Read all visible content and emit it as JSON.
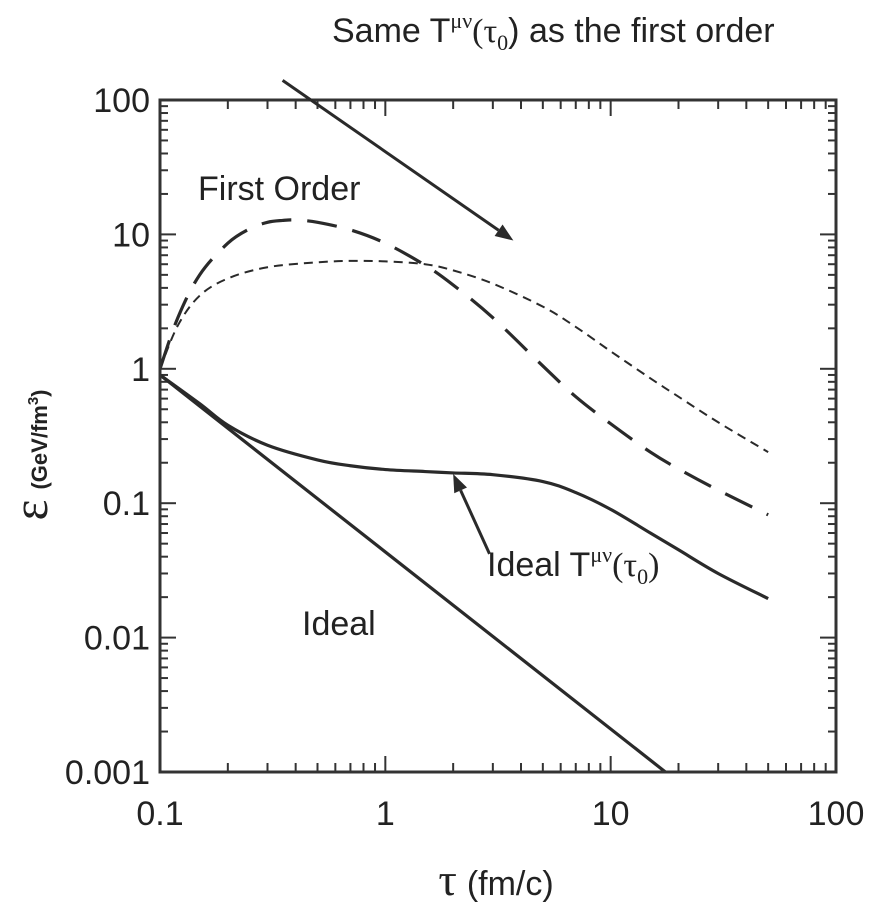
{
  "chart_data": {
    "type": "line",
    "xlabel": {
      "symbol": "τ",
      "unit": "(fm/c)"
    },
    "ylabel": {
      "symbol": "ε",
      "unit": "(GeV/fm",
      "unit_sup": "3",
      "unit_end": ")"
    },
    "x_scale": "log",
    "y_scale": "log",
    "xlim": [
      0.1,
      100
    ],
    "ylim": [
      0.001,
      100
    ],
    "x_ticks": [
      {
        "value": 0.1,
        "label": "0.1"
      },
      {
        "value": 1,
        "label": "1"
      },
      {
        "value": 10,
        "label": "10"
      },
      {
        "value": 100,
        "label": "100"
      }
    ],
    "y_ticks": [
      {
        "value": 0.001,
        "label": "0.001"
      },
      {
        "value": 0.01,
        "label": "0.01"
      },
      {
        "value": 0.1,
        "label": "0.1"
      },
      {
        "value": 1,
        "label": "1"
      },
      {
        "value": 10,
        "label": "10"
      },
      {
        "value": 100,
        "label": "100"
      }
    ],
    "grid": false,
    "series": [
      {
        "style": "long-dash",
        "points": [
          [
            0.1,
            1.0
          ],
          [
            0.12,
            2.4
          ],
          [
            0.15,
            5.0
          ],
          [
            0.2,
            8.6
          ],
          [
            0.25,
            11.0
          ],
          [
            0.3,
            12.3
          ],
          [
            0.35,
            12.7
          ],
          [
            0.4,
            12.8
          ],
          [
            0.5,
            12.3
          ],
          [
            0.7,
            10.8
          ],
          [
            1,
            8.6
          ],
          [
            1.5,
            5.9
          ],
          [
            2,
            4.2
          ],
          [
            3,
            2.4
          ],
          [
            5,
            1.05
          ],
          [
            7,
            0.62
          ],
          [
            10,
            0.39
          ],
          [
            15,
            0.24
          ],
          [
            20,
            0.18
          ],
          [
            30,
            0.125
          ],
          [
            50,
            0.082
          ]
        ]
      },
      {
        "style": "short-dash",
        "points": [
          [
            0.1,
            1.0
          ],
          [
            0.12,
            2.1
          ],
          [
            0.15,
            3.5
          ],
          [
            0.2,
            4.7
          ],
          [
            0.3,
            5.7
          ],
          [
            0.5,
            6.2
          ],
          [
            0.7,
            6.35
          ],
          [
            1,
            6.3
          ],
          [
            1.5,
            6.0
          ],
          [
            2,
            5.4
          ],
          [
            3,
            4.3
          ],
          [
            5,
            2.9
          ],
          [
            7,
            2.05
          ],
          [
            10,
            1.35
          ],
          [
            15,
            0.85
          ],
          [
            20,
            0.62
          ],
          [
            30,
            0.4
          ],
          [
            50,
            0.24
          ]
        ]
      },
      {
        "style": "solid",
        "points": [
          [
            0.1,
            0.9
          ],
          [
            0.15,
            0.55
          ],
          [
            0.2,
            0.38
          ],
          [
            0.3,
            0.27
          ],
          [
            0.5,
            0.21
          ],
          [
            0.7,
            0.19
          ],
          [
            1,
            0.178
          ],
          [
            1.5,
            0.172
          ],
          [
            2,
            0.168
          ],
          [
            3,
            0.163
          ],
          [
            5,
            0.145
          ],
          [
            7,
            0.12
          ],
          [
            10,
            0.09
          ],
          [
            15,
            0.06
          ],
          [
            20,
            0.045
          ],
          [
            30,
            0.03
          ],
          [
            50,
            0.0195
          ]
        ]
      },
      {
        "style": "solid",
        "points": [
          [
            0.1,
            0.9
          ],
          [
            17.5,
            0.001
          ]
        ]
      }
    ],
    "annotations": [
      {
        "id": "first-order",
        "text": "First Order"
      },
      {
        "id": "ideal",
        "text": "Ideal"
      },
      {
        "id": "ideal-tmunu",
        "text": "Ideal T",
        "sup": "μν",
        "arg": "(τ",
        "sub": "0",
        "end": ")"
      },
      {
        "id": "same-tmunu",
        "text": "Same T",
        "sup": "μν",
        "arg": "(τ",
        "sub": "0",
        "end": ") as the first order"
      }
    ],
    "arrows": [
      {
        "id": "arrow-same",
        "from": [
          0.35,
          140
        ],
        "to": [
          3.7,
          9
        ]
      },
      {
        "id": "arrow-ideal",
        "from": [
          2.9,
          0.042
        ],
        "to": [
          2.0,
          0.165
        ]
      }
    ]
  }
}
